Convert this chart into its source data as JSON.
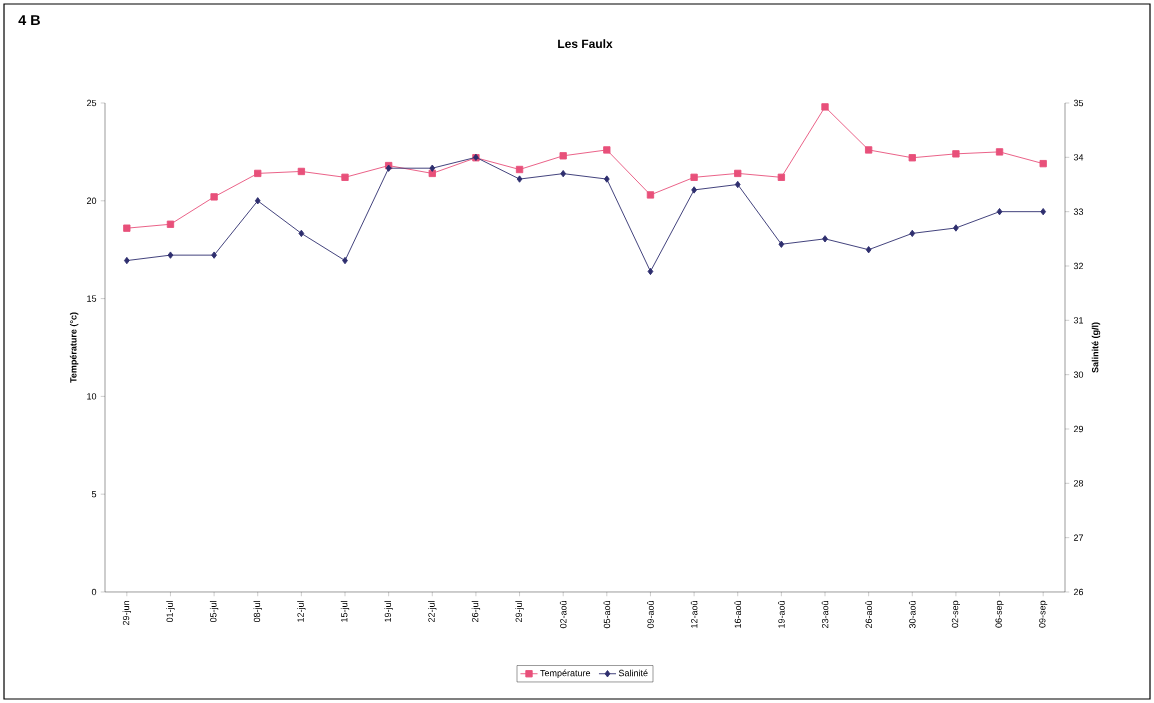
{
  "chart_data": {
    "type": "line",
    "title": "Les Faulx",
    "ylabel": "Température (°c)",
    "y2label": "Salinité (g/l)",
    "annotations": [
      "4 B"
    ],
    "categories": [
      "29-jun",
      "01-jul",
      "05-jul",
      "08-jul",
      "12-jul",
      "15-jul",
      "19-jul",
      "22-jul",
      "26-jul",
      "29-jul",
      "02-aoû",
      "05-aoû",
      "09-aoû",
      "12-aoû",
      "16-aoû",
      "19-aoû",
      "23-aoû",
      "26-aoû",
      "30-aoû",
      "02-sep",
      "06-sep",
      "09-sep"
    ],
    "series": [
      {
        "name": "Température",
        "color": "#e8507a",
        "marker": "square",
        "values": [
          18.6,
          18.8,
          20.2,
          21.4,
          21.5,
          21.2,
          21.8,
          21.4,
          22.2,
          21.6,
          22.3,
          22.6,
          20.3,
          21.2,
          21.4,
          21.2,
          24.8,
          22.6,
          22.2,
          22.4,
          22.5,
          21.9
        ]
      },
      {
        "name": "Salinité",
        "color": "#2e2e6e",
        "marker": "diamond",
        "axis": "y2",
        "values": [
          32.1,
          32.2,
          32.2,
          33.2,
          32.6,
          32.1,
          33.8,
          33.8,
          34.0,
          33.6,
          33.7,
          33.6,
          31.9,
          33.4,
          33.5,
          32.4,
          32.5,
          32.3,
          32.6,
          32.7,
          33.0,
          33.0
        ]
      }
    ],
    "ylim": [
      0,
      25
    ],
    "yticks": [
      0,
      5,
      10,
      15,
      20,
      25
    ],
    "y2lim": [
      26,
      35
    ],
    "y2ticks": [
      26,
      27,
      28,
      29,
      30,
      31,
      32,
      33,
      34,
      35
    ],
    "legend": "bottom",
    "grid": false
  }
}
